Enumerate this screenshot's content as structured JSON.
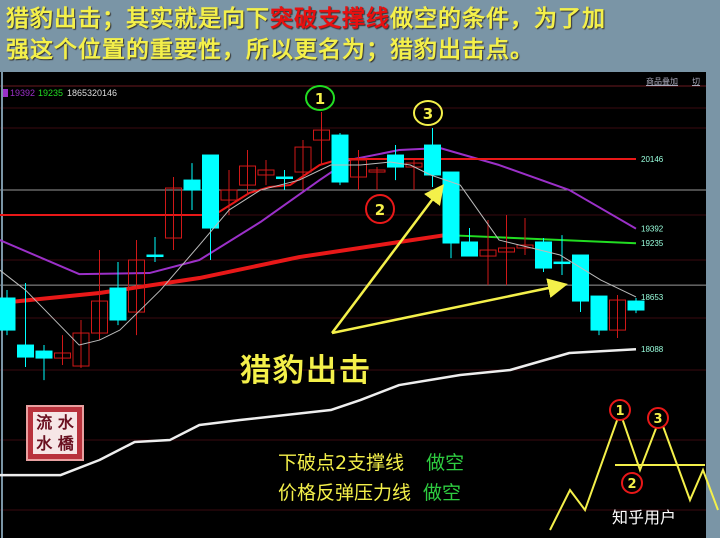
{
  "title": {
    "line1_a": "猎豹出击；其实就是向下",
    "line1_highlight": "突破支撑线",
    "line1_b": "做空的条件，为了加",
    "line2": "强这个位置的重要性，所以更名为；猎豹出击点。"
  },
  "toolbar": {
    "overlay_label": "商品叠加",
    "switch_label": "切"
  },
  "legend": {
    "ma1": "19392",
    "ma2": "19235",
    "ma3": "18653",
    "ma4": "20146"
  },
  "annotations": {
    "circle1": "1",
    "circle2": "2",
    "circle3": "3",
    "big_text": "猎豹出击",
    "note1": "下破点2支撑线",
    "note1_action": "做空",
    "note2": "价格反弹压力线",
    "note2_action": "做空",
    "logo": "流水小橋",
    "watermark": "知乎用户",
    "inset1": "1",
    "inset2": "2",
    "inset3": "3"
  },
  "colors": {
    "up": "#d01818",
    "down": "#00ffff",
    "purple": "#9b30c8",
    "green": "#22dd22",
    "gray": "#bbbbbb",
    "white": "#eeeeee",
    "annotation": "#f4f04a"
  },
  "chart_data": {
    "type": "candlestick",
    "price_labels": [
      20146,
      19392,
      19235,
      18653,
      18088
    ],
    "candles": [
      [
        18642,
        18295,
        18728,
        18241
      ],
      [
        18133,
        18003,
        18804,
        17895
      ],
      [
        18068,
        17992,
        18133,
        17754
      ],
      [
        17992,
        18047,
        18241,
        17917
      ],
      [
        17906,
        18263,
        18404,
        17884
      ],
      [
        18263,
        18609,
        19161,
        18187
      ],
      [
        18750,
        18404,
        19031,
        18349
      ],
      [
        18490,
        19053,
        19269,
        18241
      ],
      [
        19107,
        19107,
        19302,
        19031
      ],
      [
        19291,
        19832,
        19951,
        19161
      ],
      [
        19918,
        19810,
        20102,
        19594
      ],
      [
        20189,
        19399,
        20189,
        19053
      ],
      [
        19702,
        19810,
        20027,
        19540
      ],
      [
        19864,
        20070,
        20243,
        19756
      ],
      [
        19973,
        20027,
        20135,
        19864
      ],
      [
        19951,
        19951,
        20027,
        19810
      ],
      [
        20005,
        20275,
        20351,
        19810
      ],
      [
        20351,
        20459,
        20654,
        20081
      ],
      [
        20405,
        19897,
        20427,
        19864
      ],
      [
        19951,
        20135,
        20243,
        19810
      ],
      [
        20005,
        20027,
        20059,
        19810
      ],
      [
        20189,
        20059,
        20297,
        19918
      ],
      [
        20059,
        20102,
        20135,
        19810
      ],
      [
        20297,
        19973,
        20481,
        19843
      ],
      [
        20005,
        19237,
        20005,
        19074
      ],
      [
        19248,
        19096,
        19399,
        19096
      ],
      [
        19096,
        19161,
        19486,
        18782
      ],
      [
        19140,
        19183,
        19540,
        18782
      ],
      [
        19183,
        19215,
        19507,
        19107
      ],
      [
        19248,
        18966,
        19291,
        18923
      ],
      [
        19031,
        19031,
        19323,
        18891
      ],
      [
        19107,
        18609,
        19107,
        18490
      ],
      [
        18663,
        18295,
        18663,
        18241
      ],
      [
        18295,
        18620,
        18674,
        18209
      ],
      [
        18609,
        18512,
        18642,
        18479
      ]
    ],
    "lines": {
      "purple": [
        [
          -0.4,
          19269
        ],
        [
          3.9,
          18901
        ],
        [
          7.7,
          18912
        ],
        [
          10.4,
          19053
        ],
        [
          13.7,
          19464
        ],
        [
          16.9,
          19918
        ],
        [
          18.5,
          20135
        ],
        [
          21.2,
          20243
        ],
        [
          23.4,
          20265
        ],
        [
          26.6,
          20081
        ],
        [
          30.4,
          19810
        ],
        [
          34,
          19392
        ]
      ],
      "red_thick": [
        [
          -0.4,
          18588
        ],
        [
          5,
          18696
        ],
        [
          10.4,
          18858
        ],
        [
          15.8,
          19085
        ],
        [
          21.2,
          19248
        ],
        [
          23.7,
          19323
        ]
      ],
      "green": [
        [
          23.7,
          19323
        ],
        [
          34,
          19235
        ]
      ],
      "red_thin": [
        [
          -0.4,
          19540
        ],
        [
          11.2,
          19540
        ],
        [
          13.1,
          19778
        ],
        [
          14.2,
          19843
        ],
        [
          15.3,
          19864
        ],
        [
          16.9,
          20081
        ],
        [
          18,
          20146
        ],
        [
          34,
          20146
        ]
      ],
      "gray": [
        [
          -0.4,
          18945
        ],
        [
          1,
          18728
        ],
        [
          3.9,
          18133
        ],
        [
          5,
          18187
        ],
        [
          6.1,
          18295
        ],
        [
          8.3,
          18728
        ],
        [
          10.4,
          19215
        ],
        [
          12,
          19594
        ],
        [
          13.7,
          19810
        ],
        [
          15.8,
          19918
        ],
        [
          17.5,
          20081
        ],
        [
          19.1,
          20081
        ],
        [
          20.7,
          20113
        ],
        [
          21.8,
          20081
        ],
        [
          22.9,
          19973
        ],
        [
          24.5,
          19864
        ],
        [
          26.6,
          19269
        ],
        [
          28.8,
          19161
        ],
        [
          29.9,
          19107
        ],
        [
          32.1,
          18836
        ],
        [
          34,
          18653
        ]
      ],
      "white": [
        [
          -0.4,
          16726
        ],
        [
          2.9,
          16726
        ],
        [
          5,
          16889
        ],
        [
          6.9,
          17084
        ],
        [
          8.8,
          17105
        ],
        [
          10.4,
          17268
        ],
        [
          12.6,
          17322
        ],
        [
          17.5,
          17430
        ],
        [
          19.1,
          17538
        ],
        [
          21.2,
          17700
        ],
        [
          24.5,
          17809
        ],
        [
          27.2,
          17863
        ],
        [
          30.4,
          18047
        ],
        [
          34,
          18088
        ]
      ]
    },
    "gridlines": [
      19810,
      18782
    ]
  }
}
